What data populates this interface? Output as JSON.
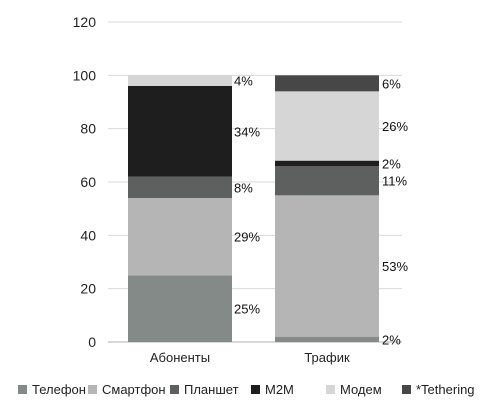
{
  "chart_data": {
    "type": "bar",
    "stacked": true,
    "categories": [
      "Абоненты",
      "Трафик"
    ],
    "ylim": [
      0,
      120
    ],
    "yticks": [
      0,
      20,
      40,
      60,
      80,
      100,
      120
    ],
    "grid": true,
    "legend_position": "bottom",
    "series": [
      {
        "name": "Телефон",
        "color": "#848a87",
        "values": [
          25,
          2
        ],
        "labels": [
          "25%",
          "2%"
        ]
      },
      {
        "name": "Смартфон",
        "color": "#b5b5b5",
        "values": [
          29,
          53
        ],
        "labels": [
          "29%",
          "53%"
        ]
      },
      {
        "name": "Планшет",
        "color": "#5d605e",
        "values": [
          8,
          11
        ],
        "labels": [
          "8%",
          "11%"
        ]
      },
      {
        "name": "M2M",
        "color": "#1e1e1e",
        "values": [
          34,
          2
        ],
        "labels": [
          "34%",
          "2%"
        ]
      },
      {
        "name": "Модем",
        "color": "#d6d6d6",
        "values": [
          4,
          26
        ],
        "labels": [
          "4%",
          "26%"
        ]
      },
      {
        "name": "*Tethering",
        "color": "#474747",
        "values": [
          0,
          6
        ],
        "labels": [
          "",
          "6%"
        ]
      }
    ]
  }
}
